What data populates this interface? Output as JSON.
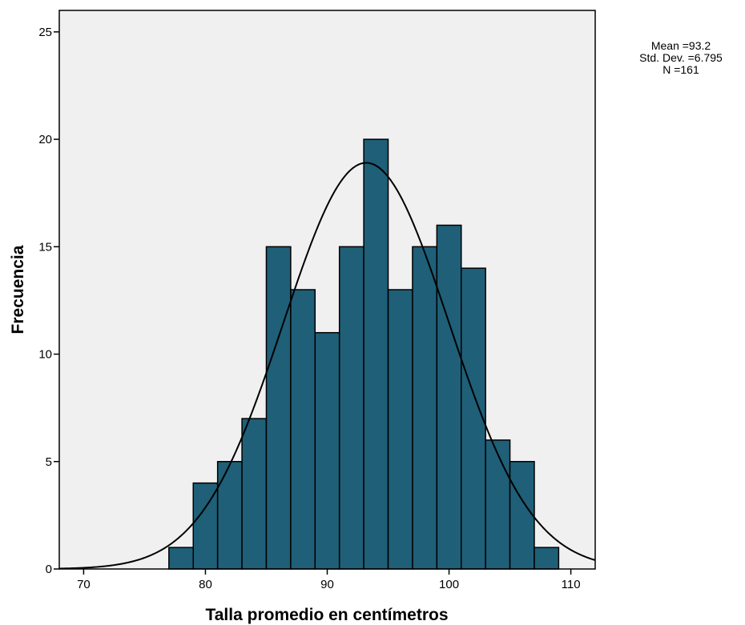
{
  "chart_data": {
    "type": "bar",
    "subtype": "histogram",
    "xlabel": "Talla promedio en centímetros",
    "ylabel": "Frecuencia",
    "xlim": [
      68,
      112
    ],
    "ylim": [
      0,
      26
    ],
    "x_ticks": [
      70,
      80,
      90,
      100,
      110
    ],
    "x_tick_labels": [
      "70",
      "80",
      "90",
      "100",
      "110"
    ],
    "y_ticks": [
      0,
      5,
      10,
      15,
      20,
      25
    ],
    "y_tick_labels": [
      "0",
      "5",
      "10",
      "15",
      "20",
      "25"
    ],
    "bin_width": 2,
    "bin_starts": [
      77,
      79,
      81,
      83,
      85,
      87,
      89,
      91,
      93,
      95,
      97,
      99,
      101,
      103,
      105,
      107
    ],
    "values": [
      1,
      4,
      5,
      7,
      15,
      13,
      11,
      15,
      20,
      13,
      15,
      16,
      14,
      6,
      5,
      1
    ],
    "normal_curve": {
      "mean": 93.2,
      "std": 6.795,
      "n": 161
    },
    "stats": [
      "Mean =93.2",
      "Std. Dev. =6.795",
      "N =161"
    ],
    "grid": false,
    "colors": {
      "bar_fill": "#1f5f78",
      "bar_stroke": "#000000",
      "plot_background": "#f0f0f0"
    }
  }
}
